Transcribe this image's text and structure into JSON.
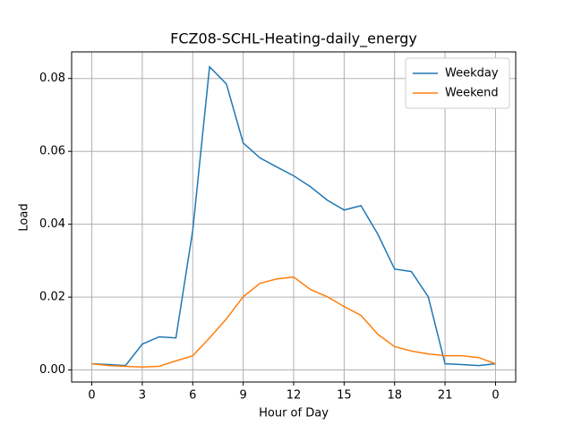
{
  "chart_data": {
    "type": "line",
    "title": "FCZ08-SCHL-Heating-daily_energy",
    "x_label": "Hour of Day",
    "y_label": "Load",
    "x": [
      0,
      1,
      2,
      3,
      4,
      5,
      6,
      7,
      8,
      9,
      10,
      11,
      12,
      13,
      14,
      15,
      16,
      17,
      18,
      19,
      20,
      21,
      22,
      23,
      24
    ],
    "series": [
      {
        "name": "Weekday",
        "color": "#1f77b4",
        "values": [
          0.0017,
          0.0015,
          0.0012,
          0.0071,
          0.0091,
          0.0088,
          0.0383,
          0.0832,
          0.0785,
          0.0623,
          0.0582,
          0.0557,
          0.0533,
          0.0503,
          0.0466,
          0.0439,
          0.0451,
          0.0373,
          0.0277,
          0.027,
          0.0201,
          0.0017,
          0.0015,
          0.0012,
          0.0017
        ]
      },
      {
        "name": "Weekend",
        "color": "#ff7f0e",
        "values": [
          0.0017,
          0.0012,
          0.001,
          0.0008,
          0.001,
          0.0025,
          0.0039,
          0.0088,
          0.014,
          0.0201,
          0.0238,
          0.025,
          0.0255,
          0.0221,
          0.0201,
          0.0174,
          0.015,
          0.0098,
          0.0064,
          0.0052,
          0.0044,
          0.0039,
          0.0039,
          0.0034,
          0.0017
        ]
      }
    ],
    "xlim": [
      -1.2,
      25.2
    ],
    "xticks": [
      0,
      3,
      6,
      9,
      12,
      15,
      18,
      21,
      {
        "value": 24,
        "label": "0"
      }
    ],
    "ylim": [
      -0.0033,
      0.0873
    ],
    "yticks": [
      {
        "value": 0,
        "label": "0.00"
      },
      0.02,
      0.04,
      0.06,
      0.08
    ],
    "grid": true,
    "legend": "upper right"
  }
}
